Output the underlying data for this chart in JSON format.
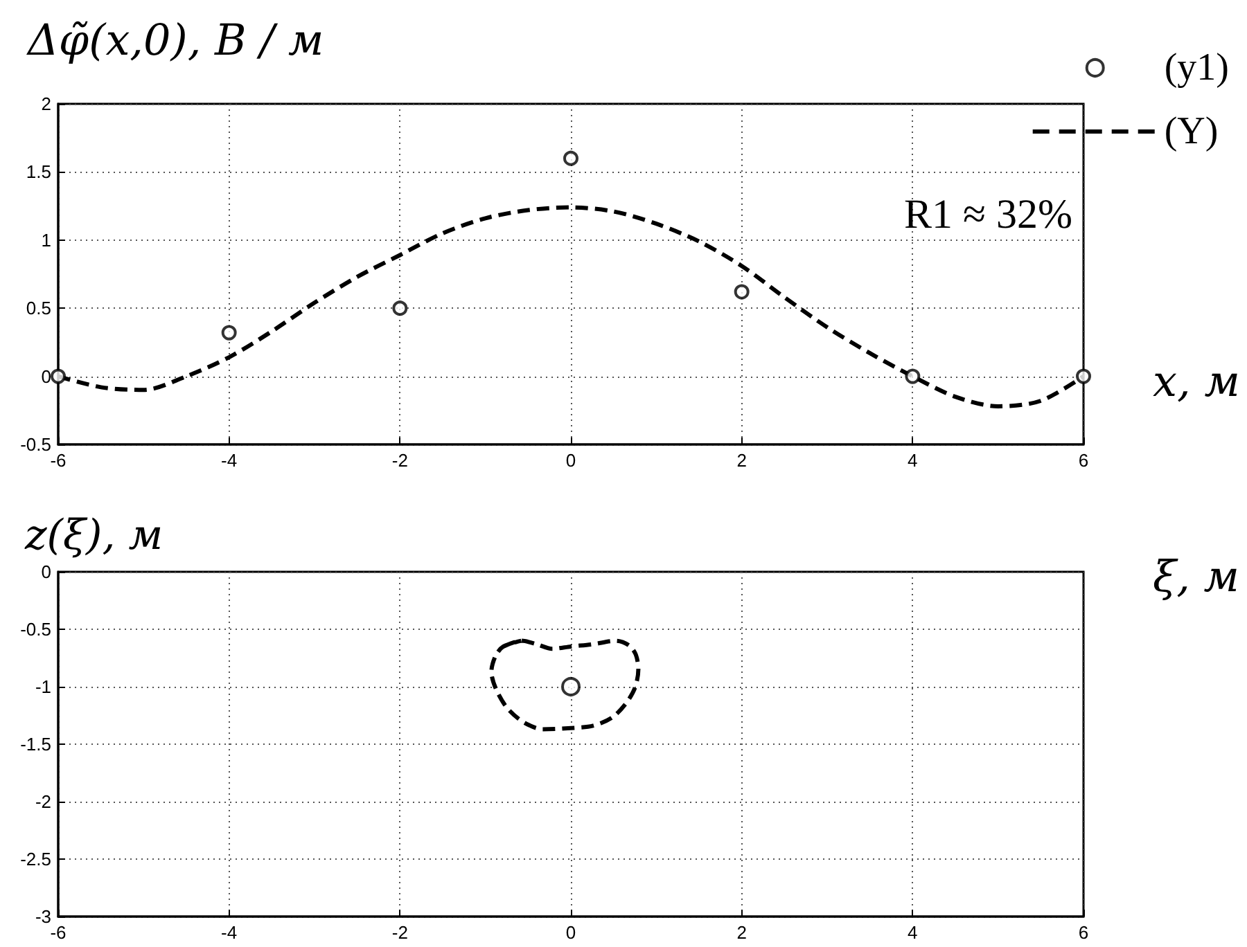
{
  "chart_data": [
    {
      "type": "line",
      "ylabel": "Δφ̃(x,0), В / м",
      "xlabel": "x, м",
      "annotations": [
        "R1 ≈ 32%"
      ],
      "series": [
        {
          "name": "(y1)",
          "type": "scatter",
          "color": "#000000",
          "marker": "circle",
          "x": [
            -6,
            -4,
            -2,
            0,
            2,
            4,
            6
          ],
          "values": [
            0,
            0.32,
            0.5,
            1.6,
            0.62,
            0,
            0
          ]
        },
        {
          "name": "(Y)",
          "color": "#000000",
          "marker": "none",
          "line_style": "dashed",
          "x": [
            -6,
            -5.5,
            -5,
            -4.5,
            -4,
            -3.5,
            -3,
            -2.5,
            -2,
            -1.5,
            -1,
            -0.5,
            0,
            0.5,
            1,
            1.5,
            2,
            2.5,
            3,
            3.5,
            4,
            4.5,
            5,
            5.5,
            6
          ],
          "values": [
            0,
            -0.08,
            -0.1,
            0,
            0.14,
            0.33,
            0.54,
            0.73,
            0.89,
            1.05,
            1.16,
            1.22,
            1.24,
            1.21,
            1.12,
            0.99,
            0.81,
            0.58,
            0.36,
            0.17,
            0,
            -0.15,
            -0.22,
            -0.18,
            0
          ]
        }
      ],
      "xlim": [
        -6,
        6
      ],
      "xticks": [
        -6,
        -4,
        -2,
        0,
        2,
        4,
        6
      ],
      "ylim": [
        -0.5,
        2
      ],
      "yticks": [
        -0.5,
        0,
        0.5,
        1,
        1.5,
        2
      ],
      "grid": true,
      "legend": "top right"
    },
    {
      "type": "line",
      "ylabel": "z(ξ), м",
      "xlabel": "ξ, м",
      "series": [
        {
          "color": "#000000",
          "marker": "none",
          "line_style": "dashed",
          "x": [
            -0.79,
            -0.58,
            -0.4,
            -0.22,
            0,
            0.26,
            0.53,
            0.68,
            0.76,
            0.79,
            0.75,
            0.64,
            0.48,
            0.26,
            0,
            -0.33,
            -0.55,
            -0.74,
            -0.87,
            -0.93,
            -0.88,
            -0.79,
            -0.58
          ],
          "values": [
            -0.65,
            -0.6,
            -0.63,
            -0.67,
            -0.65,
            -0.63,
            -0.6,
            -0.64,
            -0.72,
            -0.85,
            -1.01,
            -1.15,
            -1.27,
            -1.34,
            -1.36,
            -1.37,
            -1.31,
            -1.19,
            -1.03,
            -0.87,
            -0.73,
            -0.65,
            -0.6
          ]
        },
        {
          "type": "scatter",
          "color": "#000000",
          "marker": "circle",
          "x": [
            0
          ],
          "values": [
            -1
          ]
        }
      ],
      "xlim": [
        -6,
        6
      ],
      "xticks": [
        -6,
        -4,
        -2,
        0,
        2,
        4,
        6
      ],
      "ylim": [
        -3,
        0
      ],
      "yticks": [
        -3,
        -2.5,
        -2,
        -1.5,
        -1,
        -0.5,
        0
      ],
      "grid": true
    }
  ]
}
